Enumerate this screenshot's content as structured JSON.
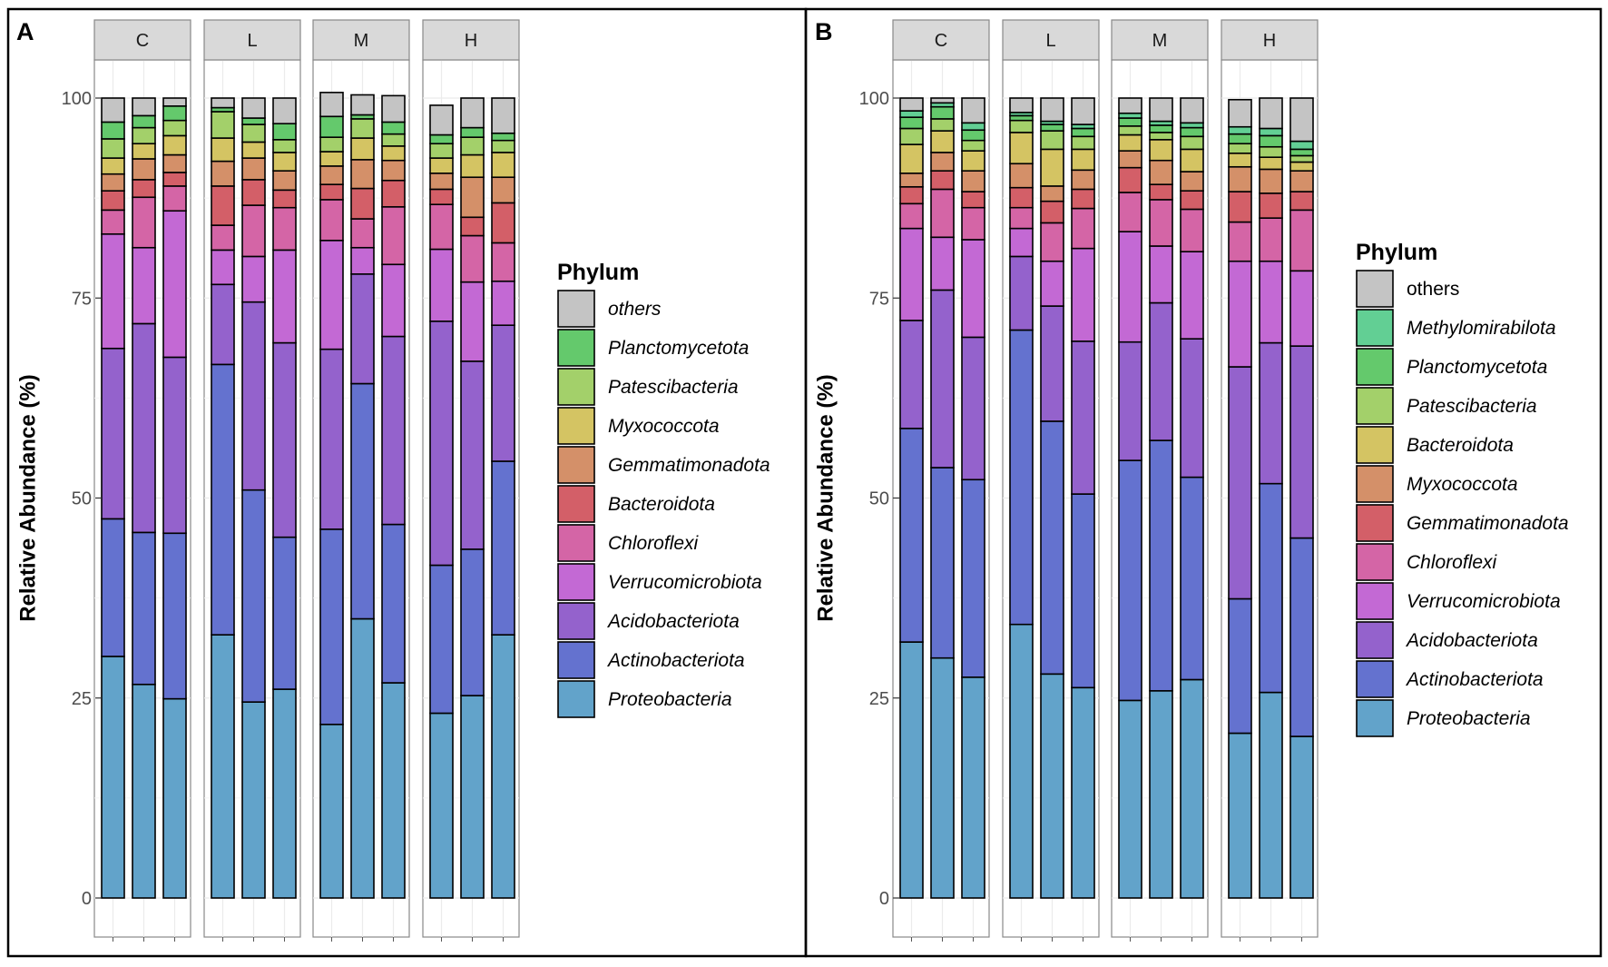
{
  "figure": {
    "panels": [
      "A",
      "B"
    ],
    "facet_labels": [
      "C",
      "L",
      "M",
      "H"
    ]
  },
  "chart_data": [
    {
      "panel": "A",
      "type": "bar",
      "stacked": true,
      "title": "",
      "xlabel": "",
      "ylabel": "Relative Abundance (%)",
      "ylim": [
        0,
        100
      ],
      "yticks": [
        0,
        25,
        50,
        75,
        100
      ],
      "facets": [
        "C",
        "L",
        "M",
        "H"
      ],
      "bars_per_facet": 3,
      "legend_title": "Phylum",
      "legend_position": "right",
      "series": [
        {
          "name": "Proteobacteria",
          "italic": true,
          "color": "#62a3ca",
          "values": [
            30.2,
            26.7,
            24.9,
            32.9,
            24.5,
            26.1,
            21.7,
            34.9,
            26.9,
            23.1,
            25.3,
            32.9
          ]
        },
        {
          "name": "Actinobacteriota",
          "italic": true,
          "color": "#6472cf",
          "values": [
            17.2,
            19.0,
            20.7,
            33.8,
            26.5,
            19.0,
            24.4,
            29.4,
            19.8,
            18.5,
            18.3,
            21.7
          ]
        },
        {
          "name": "Acidobacteriota",
          "italic": true,
          "color": "#9462cc",
          "values": [
            21.3,
            26.1,
            22.0,
            10.0,
            23.5,
            24.3,
            22.5,
            13.7,
            23.5,
            30.5,
            23.5,
            17.0
          ]
        },
        {
          "name": "Verrucomicrobiota",
          "italic": true,
          "color": "#c369d4",
          "values": [
            14.3,
            9.5,
            18.3,
            4.3,
            5.7,
            11.6,
            13.6,
            3.3,
            9.0,
            9.0,
            9.9,
            5.5
          ]
        },
        {
          "name": "Chloroflexi",
          "italic": true,
          "color": "#d465a6",
          "values": [
            3.0,
            6.3,
            3.1,
            3.1,
            6.4,
            5.3,
            5.1,
            3.6,
            7.2,
            5.6,
            5.8,
            4.8
          ]
        },
        {
          "name": "Bacteroidota",
          "italic": true,
          "color": "#d35f68",
          "values": [
            2.4,
            2.2,
            1.7,
            4.9,
            3.2,
            2.2,
            1.9,
            3.8,
            3.3,
            1.9,
            2.3,
            5.0
          ]
        },
        {
          "name": "Gemmatimonadota",
          "italic": true,
          "color": "#d49069",
          "values": [
            2.1,
            2.6,
            2.2,
            3.1,
            2.7,
            2.4,
            2.3,
            3.6,
            2.5,
            2.0,
            5.0,
            3.2
          ]
        },
        {
          "name": "Myxococcota",
          "italic": true,
          "color": "#d4c463",
          "values": [
            2.0,
            1.9,
            2.4,
            2.9,
            2.0,
            2.3,
            1.8,
            2.7,
            1.8,
            1.9,
            2.8,
            3.1
          ]
        },
        {
          "name": "Patescibacteria",
          "italic": true,
          "color": "#a3d06a",
          "values": [
            2.4,
            2.0,
            1.9,
            3.3,
            2.2,
            1.6,
            1.8,
            2.4,
            1.5,
            1.8,
            2.2,
            1.5
          ]
        },
        {
          "name": "Planctomycetota",
          "italic": true,
          "color": "#64c96c",
          "values": [
            2.1,
            1.5,
            1.8,
            0.5,
            0.8,
            2.0,
            2.6,
            0.5,
            1.5,
            1.1,
            1.2,
            0.9
          ]
        },
        {
          "name": "others",
          "italic": true,
          "color": "#c4c4c4",
          "values": [
            3.0,
            2.2,
            1.0,
            1.2,
            2.5,
            3.2,
            3.0,
            2.5,
            3.3,
            3.7,
            3.7,
            4.4
          ]
        }
      ]
    },
    {
      "panel": "B",
      "type": "bar",
      "stacked": true,
      "title": "",
      "xlabel": "",
      "ylabel": "Relative Abundance (%)",
      "ylim": [
        0,
        100
      ],
      "yticks": [
        0,
        25,
        50,
        75,
        100
      ],
      "facets": [
        "C",
        "L",
        "M",
        "H"
      ],
      "bars_per_facet": 3,
      "legend_title": "Phylum",
      "legend_position": "right",
      "series": [
        {
          "name": "Proteobacteria",
          "italic": true,
          "color": "#62a3ca",
          "values": [
            32.0,
            30.0,
            27.6,
            34.2,
            28.0,
            26.3,
            24.7,
            25.9,
            27.3,
            20.6,
            25.7,
            20.2
          ]
        },
        {
          "name": "Actinobacteriota",
          "italic": true,
          "color": "#6472cf",
          "values": [
            26.7,
            23.8,
            24.7,
            36.8,
            31.6,
            24.2,
            30.0,
            31.3,
            25.3,
            16.8,
            26.1,
            24.8
          ]
        },
        {
          "name": "Acidobacteriota",
          "italic": true,
          "color": "#9462cc",
          "values": [
            13.5,
            22.2,
            17.8,
            9.2,
            14.4,
            19.1,
            14.8,
            17.2,
            17.3,
            29.0,
            17.6,
            24.0
          ]
        },
        {
          "name": "Verrucomicrobiota",
          "italic": true,
          "color": "#c369d4",
          "values": [
            11.5,
            6.6,
            12.2,
            3.5,
            5.6,
            11.6,
            13.8,
            7.1,
            10.9,
            13.2,
            10.2,
            9.4
          ]
        },
        {
          "name": "Chloroflexi",
          "italic": true,
          "color": "#d465a6",
          "values": [
            3.1,
            6.0,
            4.0,
            2.6,
            4.8,
            5.0,
            4.9,
            5.8,
            5.3,
            4.9,
            5.4,
            7.6
          ]
        },
        {
          "name": "Gemmatimonadota",
          "italic": true,
          "color": "#d35f68",
          "values": [
            2.1,
            2.3,
            2.0,
            2.5,
            2.7,
            2.4,
            3.1,
            1.9,
            2.3,
            3.8,
            3.1,
            2.3
          ]
        },
        {
          "name": "Myxococcota",
          "italic": true,
          "color": "#d49069",
          "values": [
            1.7,
            2.3,
            2.6,
            3.0,
            1.9,
            2.4,
            2.1,
            3.0,
            2.4,
            3.1,
            3.0,
            2.6
          ]
        },
        {
          "name": "Bacteroidota",
          "italic": true,
          "color": "#d4c463",
          "values": [
            3.6,
            2.7,
            2.5,
            3.9,
            4.6,
            2.6,
            2.0,
            2.6,
            2.8,
            1.7,
            1.5,
            1.1
          ]
        },
        {
          "name": "Patescibacteria",
          "italic": true,
          "color": "#a3d06a",
          "values": [
            2.0,
            1.5,
            1.3,
            1.5,
            2.3,
            1.6,
            1.1,
            0.9,
            1.6,
            1.2,
            1.3,
            0.8
          ]
        },
        {
          "name": "Planctomycetota",
          "italic": true,
          "color": "#64c96c",
          "values": [
            1.4,
            1.5,
            1.3,
            0.6,
            0.8,
            1.0,
            1.0,
            0.9,
            1.1,
            1.2,
            1.4,
            0.8
          ]
        },
        {
          "name": "Methylomirabilota",
          "italic": true,
          "color": "#62cf94",
          "values": [
            0.8,
            0.5,
            0.9,
            0.4,
            0.4,
            0.5,
            0.6,
            0.5,
            0.6,
            0.9,
            0.9,
            1.0
          ]
        },
        {
          "name": "others",
          "italic": false,
          "color": "#c4c4c4",
          "values": [
            1.6,
            0.6,
            3.1,
            1.8,
            2.9,
            3.3,
            1.9,
            2.9,
            3.1,
            3.4,
            3.8,
            5.4
          ]
        }
      ]
    }
  ]
}
